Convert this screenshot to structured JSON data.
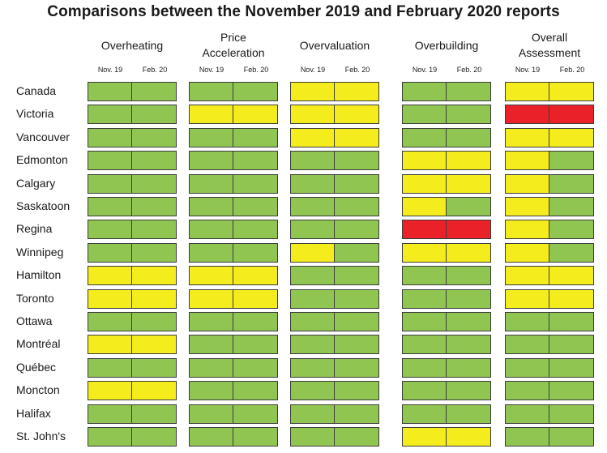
{
  "chart_data": {
    "type": "table",
    "title": "Comparisons between the November 2019 and February 2020 reports",
    "periods": [
      "Nov. 19",
      "Feb. 20"
    ],
    "groups": [
      {
        "label": "Overheating"
      },
      {
        "label": "Price Acceleration"
      },
      {
        "label": "Overvaluation"
      },
      {
        "label": "Overbuilding"
      },
      {
        "label": "Overall Assessment"
      }
    ],
    "colors": {
      "G": "#8fc550",
      "Y": "#f5ec1e",
      "R": "#ea2128"
    },
    "rows": [
      {
        "label": "Canada",
        "values": [
          [
            "G",
            "G"
          ],
          [
            "G",
            "G"
          ],
          [
            "Y",
            "Y"
          ],
          [
            "G",
            "G"
          ],
          [
            "Y",
            "Y"
          ]
        ]
      },
      {
        "label": "Victoria",
        "values": [
          [
            "G",
            "G"
          ],
          [
            "Y",
            "Y"
          ],
          [
            "Y",
            "Y"
          ],
          [
            "G",
            "G"
          ],
          [
            "R",
            "R"
          ]
        ]
      },
      {
        "label": "Vancouver",
        "values": [
          [
            "G",
            "G"
          ],
          [
            "G",
            "G"
          ],
          [
            "Y",
            "Y"
          ],
          [
            "G",
            "G"
          ],
          [
            "Y",
            "Y"
          ]
        ]
      },
      {
        "label": "Edmonton",
        "values": [
          [
            "G",
            "G"
          ],
          [
            "G",
            "G"
          ],
          [
            "G",
            "G"
          ],
          [
            "Y",
            "Y"
          ],
          [
            "Y",
            "G"
          ]
        ]
      },
      {
        "label": "Calgary",
        "values": [
          [
            "G",
            "G"
          ],
          [
            "G",
            "G"
          ],
          [
            "G",
            "G"
          ],
          [
            "Y",
            "Y"
          ],
          [
            "Y",
            "G"
          ]
        ]
      },
      {
        "label": "Saskatoon",
        "values": [
          [
            "G",
            "G"
          ],
          [
            "G",
            "G"
          ],
          [
            "G",
            "G"
          ],
          [
            "Y",
            "G"
          ],
          [
            "Y",
            "G"
          ]
        ]
      },
      {
        "label": "Regina",
        "values": [
          [
            "G",
            "G"
          ],
          [
            "G",
            "G"
          ],
          [
            "G",
            "G"
          ],
          [
            "R",
            "R"
          ],
          [
            "Y",
            "G"
          ]
        ]
      },
      {
        "label": "Winnipeg",
        "values": [
          [
            "G",
            "G"
          ],
          [
            "G",
            "G"
          ],
          [
            "Y",
            "G"
          ],
          [
            "Y",
            "Y"
          ],
          [
            "Y",
            "G"
          ]
        ]
      },
      {
        "label": "Hamilton",
        "values": [
          [
            "Y",
            "Y"
          ],
          [
            "Y",
            "Y"
          ],
          [
            "G",
            "G"
          ],
          [
            "G",
            "G"
          ],
          [
            "Y",
            "Y"
          ]
        ]
      },
      {
        "label": "Toronto",
        "values": [
          [
            "Y",
            "Y"
          ],
          [
            "Y",
            "Y"
          ],
          [
            "G",
            "G"
          ],
          [
            "G",
            "G"
          ],
          [
            "Y",
            "Y"
          ]
        ]
      },
      {
        "label": "Ottawa",
        "values": [
          [
            "G",
            "G"
          ],
          [
            "G",
            "G"
          ],
          [
            "G",
            "G"
          ],
          [
            "G",
            "G"
          ],
          [
            "G",
            "G"
          ]
        ]
      },
      {
        "label": "Montréal",
        "values": [
          [
            "Y",
            "Y"
          ],
          [
            "G",
            "G"
          ],
          [
            "G",
            "G"
          ],
          [
            "G",
            "G"
          ],
          [
            "G",
            "G"
          ]
        ]
      },
      {
        "label": "Québec",
        "values": [
          [
            "G",
            "G"
          ],
          [
            "G",
            "G"
          ],
          [
            "G",
            "G"
          ],
          [
            "G",
            "G"
          ],
          [
            "G",
            "G"
          ]
        ]
      },
      {
        "label": "Moncton",
        "values": [
          [
            "Y",
            "Y"
          ],
          [
            "G",
            "G"
          ],
          [
            "G",
            "G"
          ],
          [
            "G",
            "G"
          ],
          [
            "G",
            "G"
          ]
        ]
      },
      {
        "label": "Halifax",
        "values": [
          [
            "G",
            "G"
          ],
          [
            "G",
            "G"
          ],
          [
            "G",
            "G"
          ],
          [
            "G",
            "G"
          ],
          [
            "G",
            "G"
          ]
        ]
      },
      {
        "label": "St. John's",
        "values": [
          [
            "G",
            "G"
          ],
          [
            "G",
            "G"
          ],
          [
            "G",
            "G"
          ],
          [
            "Y",
            "Y"
          ],
          [
            "G",
            "G"
          ]
        ]
      }
    ]
  }
}
